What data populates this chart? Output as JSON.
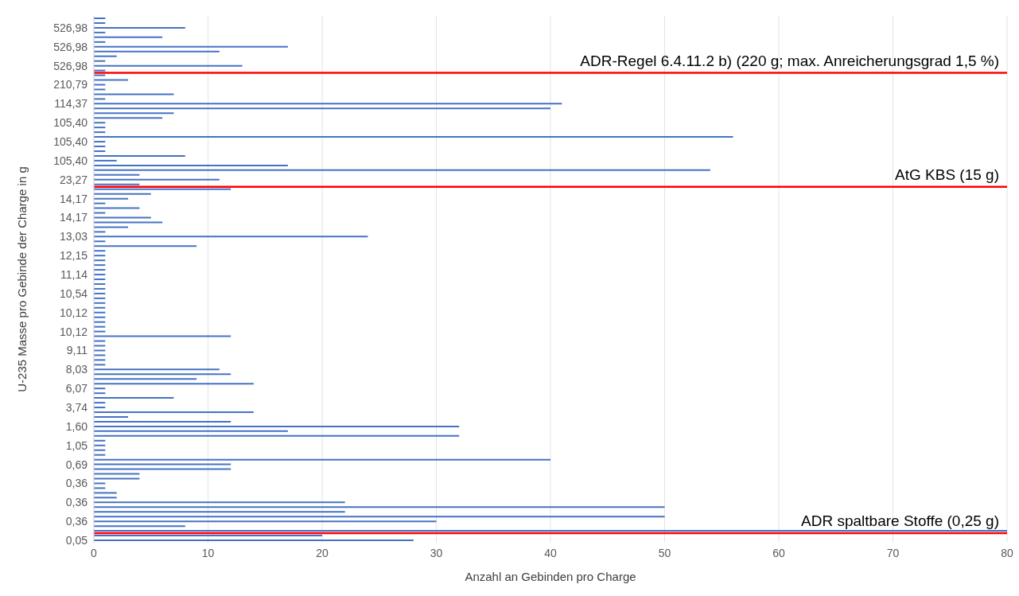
{
  "chart_data": {
    "type": "bar",
    "orientation": "horizontal",
    "xlabel": "Anzahl an Gebinden pro Charge",
    "ylabel": "U-235 Masse pro Gebinde der Charge in g",
    "categories": [
      null,
      null,
      "526,98",
      null,
      null,
      null,
      "526,98",
      null,
      null,
      null,
      "526,98",
      null,
      null,
      null,
      "210,79",
      null,
      null,
      null,
      "114,37",
      null,
      null,
      null,
      "105,40",
      null,
      null,
      null,
      "105,40",
      null,
      null,
      null,
      "105,40",
      null,
      null,
      null,
      "23,27",
      null,
      null,
      null,
      "14,17",
      null,
      null,
      null,
      "14,17",
      null,
      null,
      null,
      "13,03",
      null,
      null,
      null,
      "12,15",
      null,
      null,
      null,
      "11,14",
      null,
      null,
      null,
      "10,54",
      null,
      null,
      null,
      "10,12",
      null,
      null,
      null,
      "10,12",
      null,
      null,
      null,
      "9,11",
      null,
      null,
      null,
      "8,03",
      null,
      null,
      null,
      "6,07",
      null,
      null,
      null,
      "3,74",
      null,
      null,
      null,
      "1,60",
      null,
      null,
      null,
      "1,05",
      null,
      null,
      null,
      "0,69",
      null,
      null,
      null,
      "0,36",
      null,
      null,
      null,
      "0,36",
      null,
      null,
      null,
      "0,36",
      null,
      null,
      null,
      "0,05"
    ],
    "values": [
      1,
      1,
      8,
      1,
      6,
      1,
      17,
      11,
      2,
      1,
      13,
      1,
      1,
      3,
      1,
      1,
      7,
      1,
      41,
      40,
      7,
      6,
      1,
      1,
      1,
      56,
      1,
      1,
      1,
      8,
      2,
      17,
      54,
      4,
      11,
      4,
      12,
      5,
      3,
      1,
      4,
      1,
      5,
      6,
      3,
      1,
      24,
      1,
      9,
      1,
      1,
      1,
      1,
      1,
      1,
      1,
      1,
      1,
      1,
      1,
      1,
      1,
      1,
      1,
      1,
      1,
      1,
      12,
      1,
      1,
      1,
      1,
      1,
      1,
      11,
      12,
      9,
      14,
      1,
      1,
      7,
      1,
      1,
      14,
      3,
      12,
      32,
      17,
      32,
      1,
      1,
      1,
      1,
      40,
      12,
      12,
      4,
      4,
      1,
      1,
      2,
      2,
      22,
      50,
      22,
      50,
      30,
      8,
      80,
      20,
      28
    ],
    "color": "#4472c4",
    "xlim": [
      0,
      80
    ],
    "xticks": [
      0,
      10,
      20,
      30,
      40,
      50,
      60,
      70,
      80
    ],
    "grid": "x",
    "annotations": [
      "ADR-Regel 6.4.11.2 b) (220 g; max. Anreicherungsgrad 1,5 %)",
      "AtG KBS (15 g)",
      "ADR spaltbare Stoffe (0,25 g)"
    ]
  }
}
